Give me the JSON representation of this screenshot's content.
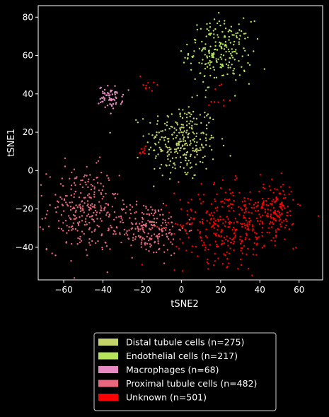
{
  "chart_data": {
    "type": "scatter",
    "title": "",
    "xlabel": "tSNE2",
    "ylabel": "tSNE1",
    "xlim": [
      -73,
      72
    ],
    "ylim": [
      -57,
      86
    ],
    "xticks": [
      -60,
      -40,
      -20,
      0,
      20,
      40,
      60
    ],
    "yticks": [
      -40,
      -20,
      0,
      20,
      40,
      60,
      80
    ],
    "grid": false,
    "legend_position": "below",
    "background": "#000000",
    "series": [
      {
        "name": "Distal tubule cells (n=275)",
        "color": "#c5d36b",
        "count": 275,
        "clusters": [
          {
            "cx": 0,
            "cy": 15,
            "sx": 9,
            "sy": 10,
            "n": 275
          }
        ]
      },
      {
        "name": "Endothelial cells (n=217)",
        "color": "#b4e35a",
        "count": 217,
        "clusters": [
          {
            "cx": 20,
            "cy": 62,
            "sx": 8,
            "sy": 8,
            "n": 217
          }
        ]
      },
      {
        "name": "Macrophages (n=68)",
        "color": "#e88ac2",
        "count": 68,
        "clusters": [
          {
            "cx": -36,
            "cy": 38,
            "sx": 3,
            "sy": 3,
            "n": 68
          }
        ]
      },
      {
        "name": "Proximal tubule cells (n=482)",
        "color": "#e8677c",
        "count": 482,
        "clusters": [
          {
            "cx": -50,
            "cy": -20,
            "sx": 9,
            "sy": 11,
            "n": 260
          },
          {
            "cx": -18,
            "cy": -30,
            "sx": 10,
            "sy": 7,
            "n": 222
          }
        ]
      },
      {
        "name": "Unknown (n=501)",
        "color": "#ff0000",
        "count": 501,
        "clusters": [
          {
            "cx": 25,
            "cy": -28,
            "sx": 14,
            "sy": 10,
            "n": 340
          },
          {
            "cx": 48,
            "cy": -20,
            "sx": 5,
            "sy": 7,
            "n": 130
          },
          {
            "cx": 20,
            "cy": 40,
            "sx": 3,
            "sy": 4,
            "n": 10
          },
          {
            "cx": -18,
            "cy": 45,
            "sx": 2,
            "sy": 3,
            "n": 11
          },
          {
            "cx": -20,
            "cy": 10,
            "sx": 1,
            "sy": 2,
            "n": 10
          }
        ]
      }
    ]
  }
}
